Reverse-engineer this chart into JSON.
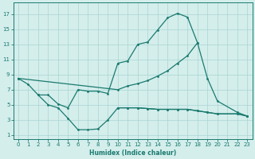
{
  "color": "#1a7a6e",
  "bg_color": "#d4eeec",
  "grid_color": "#a8d5d1",
  "xlabel": "Humidex (Indice chaleur)",
  "xlim": [
    -0.5,
    23.5
  ],
  "ylim": [
    0.5,
    18.5
  ],
  "yticks": [
    1,
    3,
    5,
    7,
    9,
    11,
    13,
    15,
    17
  ],
  "xticks": [
    0,
    1,
    2,
    3,
    4,
    5,
    6,
    7,
    8,
    9,
    10,
    11,
    12,
    13,
    14,
    15,
    16,
    17,
    18,
    19,
    20,
    21,
    22,
    23
  ],
  "high_x": [
    0,
    1,
    2,
    3,
    4,
    5,
    6,
    7,
    8,
    9,
    10,
    11,
    12,
    13,
    14,
    15,
    16,
    17,
    18
  ],
  "high_y": [
    8.5,
    7.7,
    6.3,
    6.3,
    5.1,
    4.6,
    7.0,
    6.8,
    6.8,
    6.5,
    10.5,
    10.8,
    13.0,
    13.3,
    14.9,
    16.5,
    17.1,
    16.6,
    13.2
  ],
  "diag_x": [
    0,
    10,
    11,
    12,
    13,
    14,
    15,
    16,
    17,
    18,
    19,
    20,
    22,
    23
  ],
  "diag_y": [
    8.5,
    7.0,
    7.5,
    7.8,
    8.2,
    8.8,
    9.5,
    10.5,
    11.5,
    13.2,
    8.5,
    5.5,
    4.0,
    3.5
  ],
  "low_x": [
    2,
    3,
    4,
    5,
    6,
    7,
    8,
    9,
    10,
    11,
    12,
    13,
    14,
    15,
    16,
    17,
    18,
    19,
    20,
    22,
    23
  ],
  "low_y": [
    6.3,
    5.0,
    4.6,
    3.2,
    1.7,
    1.7,
    1.8,
    3.0,
    4.6,
    4.6,
    4.6,
    4.5,
    4.4,
    4.4,
    4.4,
    4.4,
    4.2,
    4.0,
    3.8,
    3.8,
    3.5
  ],
  "flat_x": [
    10,
    11,
    12,
    13,
    14,
    15,
    16,
    17,
    18,
    19,
    20,
    22,
    23
  ],
  "flat_y": [
    4.6,
    4.6,
    4.6,
    4.5,
    4.4,
    4.4,
    4.4,
    4.4,
    4.2,
    4.0,
    3.8,
    3.8,
    3.5
  ]
}
